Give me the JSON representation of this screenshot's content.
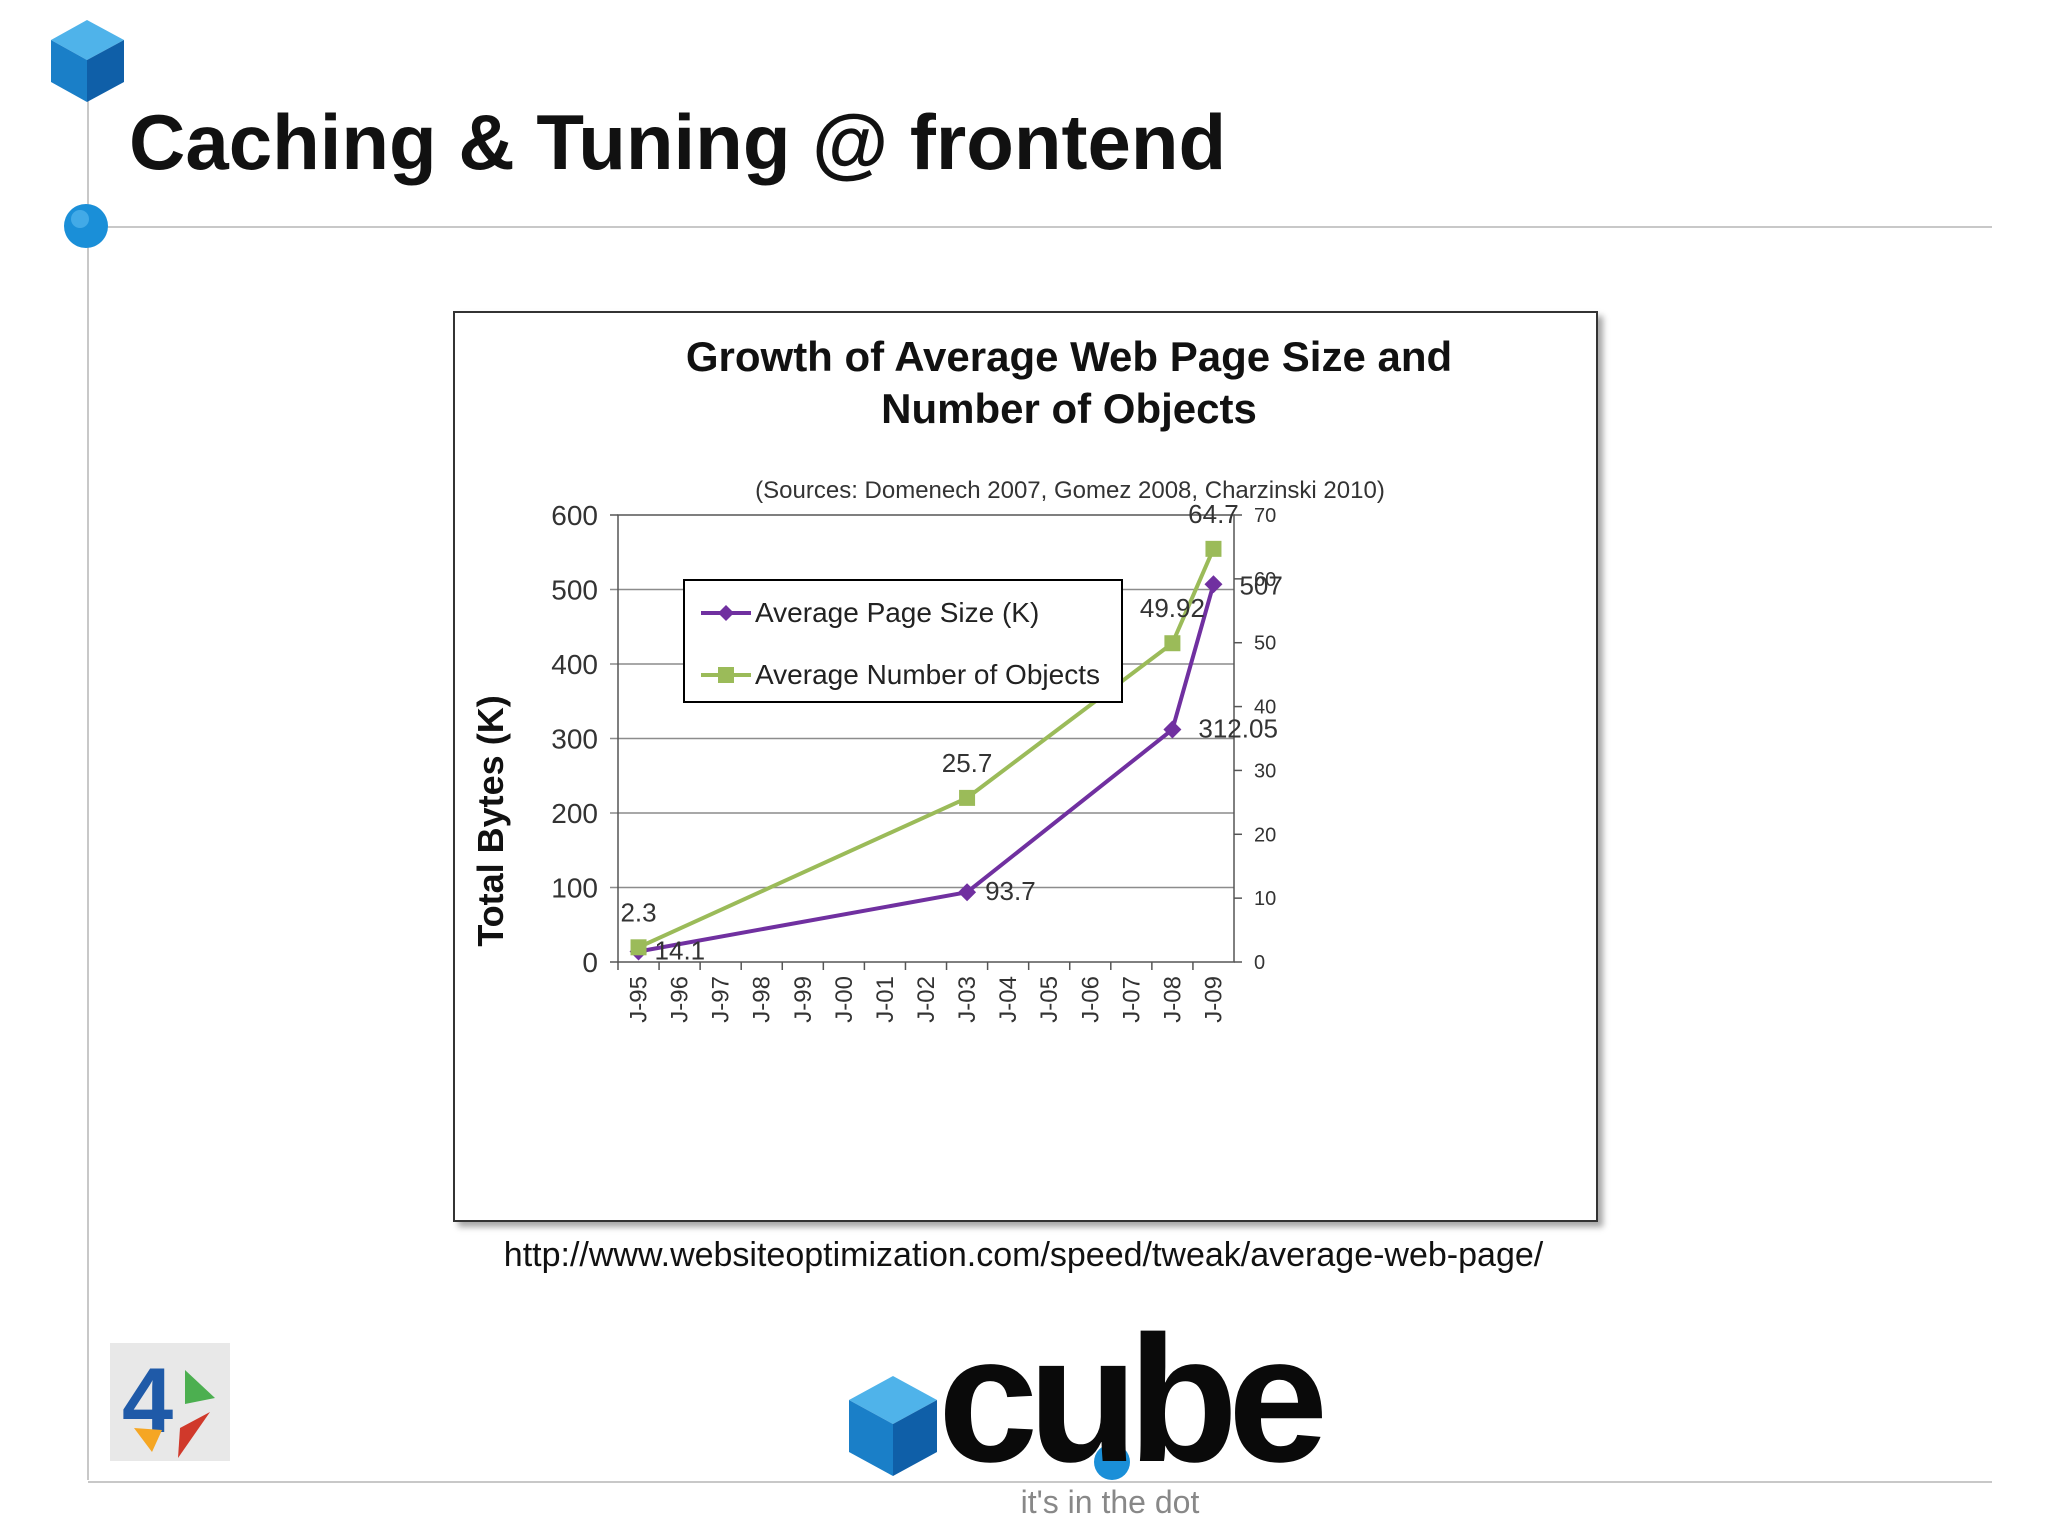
{
  "slide": {
    "title": "Caching & Tuning @ frontend",
    "source_url": "http://www.websiteoptimization.com/speed/tweak/average-web-page/",
    "brand_word": "cube",
    "tagline": "it's in the dot",
    "accent_color": "#1a8fd8",
    "rule_color": "#bdbdbd"
  },
  "chart_data": {
    "type": "line",
    "title_line1": "Growth of Average Web Page Size and",
    "title_line2": "Number of Objects",
    "subtitle": "(Sources: Domenech 2007, Gomez 2008, Charzinski 2010)",
    "ylabel": "Total Bytes (K)",
    "categories": [
      "J-95",
      "J-96",
      "J-97",
      "J-98",
      "J-99",
      "J-00",
      "J-01",
      "J-02",
      "J-03",
      "J-04",
      "J-05",
      "J-06",
      "J-07",
      "J-08",
      "J-09"
    ],
    "ylim": [
      0,
      600
    ],
    "yticks": [
      0,
      100,
      200,
      300,
      400,
      500,
      600
    ],
    "y2lim": [
      0,
      70
    ],
    "y2ticks": [
      0,
      10,
      20,
      30,
      40,
      50,
      60,
      70
    ],
    "grid": true,
    "legend_position": "top-left",
    "series": [
      {
        "name": "Average Page Size (K)",
        "axis": "left",
        "color": "#7030a0",
        "marker": "diamond",
        "points": [
          {
            "x": "J-95",
            "y": 14.1,
            "label": "14.1"
          },
          {
            "x": "J-03",
            "y": 93.7,
            "label": "93.7"
          },
          {
            "x": "J-08",
            "y": 312.05,
            "label": "312.05"
          },
          {
            "x": "J-09",
            "y": 507,
            "label": "507"
          }
        ]
      },
      {
        "name": "Average Number of Objects",
        "axis": "right",
        "color": "#9bbb59",
        "marker": "square",
        "points": [
          {
            "x": "J-95",
            "y": 2.3,
            "label": "2.3"
          },
          {
            "x": "J-03",
            "y": 25.7,
            "label": "25.7"
          },
          {
            "x": "J-08",
            "y": 49.92,
            "label": "49.92"
          },
          {
            "x": "J-09",
            "y": 64.7,
            "label": "64.7"
          }
        ]
      }
    ]
  }
}
